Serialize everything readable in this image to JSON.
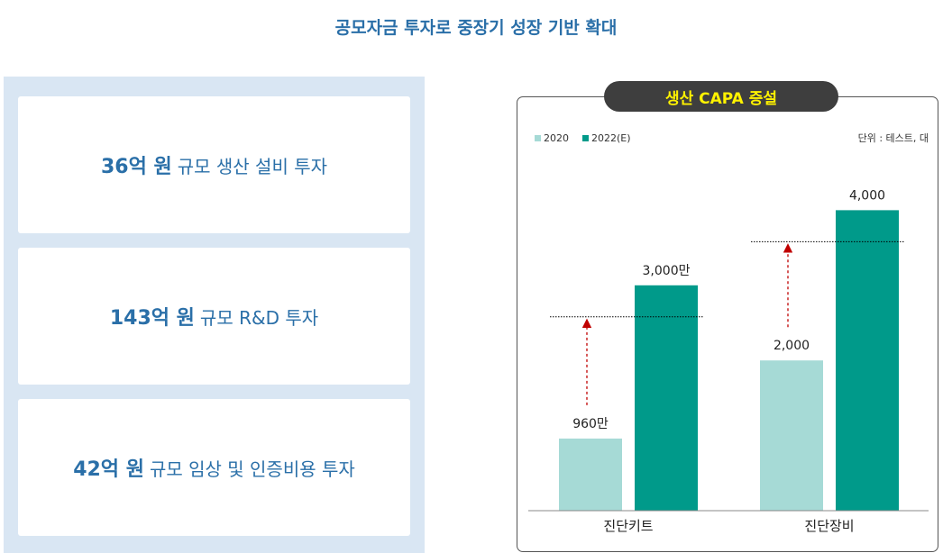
{
  "page_title": "공모자금 투자로 중장기 성장 기반 확대",
  "investments": [
    {
      "amount": "36억 원",
      "desc": "규모 생산 설비 투자"
    },
    {
      "amount": "143억 원",
      "desc": "규모 R&D 투자"
    },
    {
      "amount": "42억 원",
      "desc": "규모 임상 및 인증비용 투자"
    }
  ],
  "colors": {
    "accent_blue": "#2a6fa8",
    "panel_bg": "#d9e6f3",
    "badge_bg": "#3e3e3e",
    "badge_text": "#fff200",
    "series_2020": "#a6dad6",
    "series_2022": "#009a8a",
    "arrow": "#c00000"
  },
  "chart_data": {
    "type": "bar",
    "title": "생산 CAPA 증설",
    "unit_note": "단위 : 테스트, 대",
    "legend_position": "top-left",
    "categories": [
      "진단키트",
      "진단장비"
    ],
    "series": [
      {
        "name": "2020",
        "values": [
          960,
          2000
        ],
        "labels": [
          "960만",
          "2,000"
        ]
      },
      {
        "name": "2022(E)",
        "values": [
          3000,
          4000
        ],
        "labels": [
          "3,000만",
          "4,000"
        ]
      }
    ],
    "ylim": [
      0,
      4700
    ],
    "grid": false
  }
}
